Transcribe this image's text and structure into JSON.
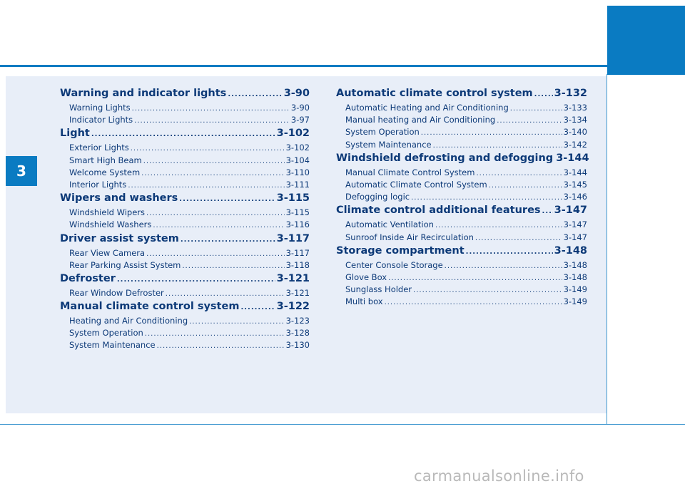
{
  "chapter": "3",
  "left_column": [
    {
      "title": "Warning and indicator lights",
      "page": "3-90",
      "items": [
        {
          "label": "Warning Lights",
          "page": "3-90"
        },
        {
          "label": "Indicator Lights",
          "page": "3-97"
        }
      ]
    },
    {
      "title": "Light",
      "page": "3-102",
      "items": [
        {
          "label": "Exterior Lights",
          "page": "3-102"
        },
        {
          "label": "Smart High Beam",
          "page": "3-104"
        },
        {
          "label": "Welcome System",
          "page": "3-110"
        },
        {
          "label": "Interior Lights",
          "page": "3-111"
        }
      ]
    },
    {
      "title": "Wipers and washers",
      "page": "3-115",
      "items": [
        {
          "label": "Windshield Wipers",
          "page": "3-115"
        },
        {
          "label": "Windshield Washers",
          "page": "3-116"
        }
      ]
    },
    {
      "title": "Driver assist system",
      "page": "3-117",
      "items": [
        {
          "label": "Rear View Camera",
          "page": "3-117"
        },
        {
          "label": "Rear Parking Assist System",
          "page": "3-118"
        }
      ]
    },
    {
      "title": "Defroster",
      "page": "3-121",
      "items": [
        {
          "label": "Rear Window Defroster",
          "page": "3-121"
        }
      ]
    },
    {
      "title": "Manual climate control system",
      "page": "3-122",
      "items": [
        {
          "label": "Heating and Air Conditioning",
          "page": "3-123"
        },
        {
          "label": "System Operation",
          "page": "3-128"
        },
        {
          "label": "System Maintenance",
          "page": "3-130"
        }
      ]
    }
  ],
  "right_column": [
    {
      "title": "Automatic climate control system",
      "page": "3-132",
      "items": [
        {
          "label": "Automatic Heating and Air Conditioning",
          "page": "3-133"
        },
        {
          "label": "Manual heating and Air Conditioning",
          "page": "3-134"
        },
        {
          "label": "System Operation",
          "page": "3-140"
        },
        {
          "label": "System Maintenance",
          "page": "3-142"
        }
      ]
    },
    {
      "title": "Windshield defrosting and defogging",
      "page": "3-144",
      "items": [
        {
          "label": "Manual Climate Control System",
          "page": "3-144"
        },
        {
          "label": "Automatic Climate Control System",
          "page": "3-145"
        },
        {
          "label": "Defogging logic",
          "page": "3-146"
        }
      ]
    },
    {
      "title": "Climate control additional features",
      "page": "3-147",
      "items": [
        {
          "label": "Automatic Ventilation",
          "page": "3-147"
        },
        {
          "label": "Sunroof Inside Air Recirculation",
          "page": "3-147"
        }
      ]
    },
    {
      "title": "Storage compartment",
      "page": "3-148",
      "items": [
        {
          "label": "Center Console Storage",
          "page": "3-148"
        },
        {
          "label": "Glove Box",
          "page": "3-148"
        },
        {
          "label": "Sunglass Holder",
          "page": "3-149"
        },
        {
          "label": "Multi box",
          "page": "3-149"
        }
      ]
    }
  ],
  "watermark": "carmanualsonline.info",
  "colors": {
    "accent": "#0a7bc2",
    "panel": "#e8eef8",
    "text": "#0d3a78"
  }
}
